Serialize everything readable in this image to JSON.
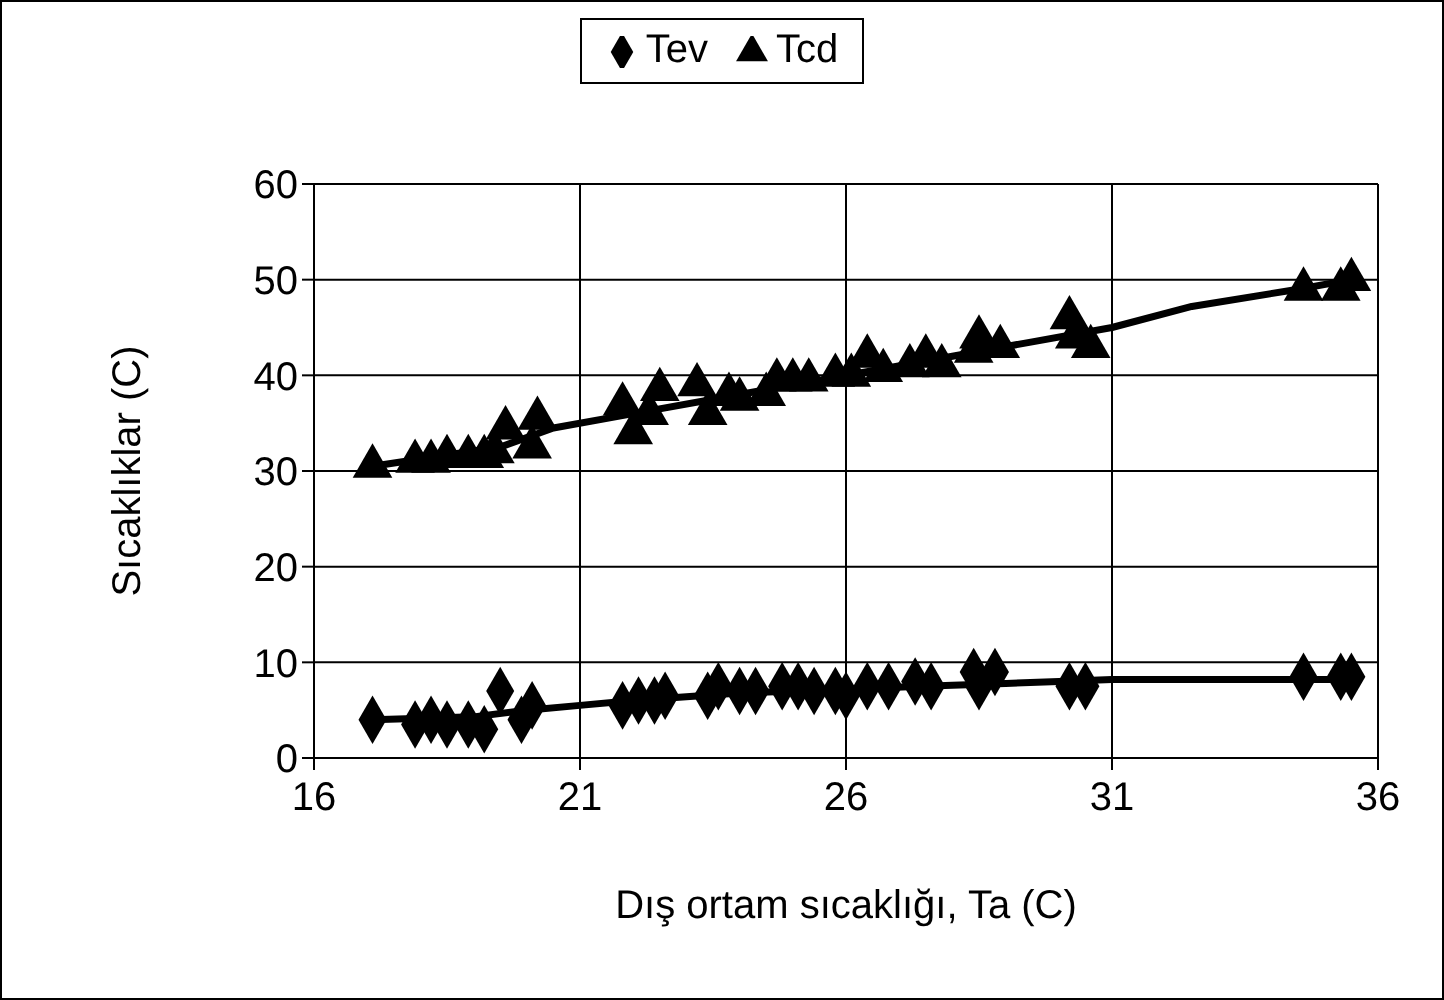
{
  "chart_data": {
    "type": "scatter",
    "xlabel": "Dış ortam sıcaklığı, Ta (C)",
    "ylabel": "Sıcaklıklar (C)",
    "xlim": [
      16,
      36
    ],
    "xticks": [
      16,
      21,
      26,
      31,
      36
    ],
    "ylim": [
      0,
      60
    ],
    "yticks": [
      0,
      10,
      20,
      30,
      40,
      50,
      60
    ],
    "grid": true,
    "legend": "top",
    "series": [
      {
        "name": "Tev",
        "marker": "diamond",
        "color": "#000000",
        "x": [
          17.1,
          17.9,
          18.2,
          18.5,
          18.9,
          19.2,
          19.5,
          19.9,
          20.1,
          21.8,
          22.1,
          22.4,
          22.6,
          23.4,
          23.6,
          24.0,
          24.3,
          24.8,
          25.1,
          25.4,
          25.8,
          26.0,
          26.4,
          26.8,
          27.3,
          27.6,
          28.4,
          28.5,
          28.8,
          30.2,
          30.5,
          34.6,
          35.3,
          35.5
        ],
        "values": [
          4,
          3.5,
          4,
          3.5,
          3.5,
          3,
          7,
          4,
          5.5,
          5.5,
          6,
          6,
          6.5,
          6.5,
          7.5,
          7,
          7,
          7.5,
          7.5,
          7,
          7,
          6.5,
          7.5,
          7.5,
          8,
          7.5,
          9,
          7.5,
          9,
          7.5,
          7.5,
          8.5,
          8.5,
          8.5
        ]
      },
      {
        "name": "Tcd",
        "marker": "triangle",
        "color": "#000000",
        "x": [
          17.1,
          17.9,
          18.2,
          18.5,
          18.9,
          19.2,
          19.4,
          19.6,
          20.1,
          20.2,
          21.8,
          22.0,
          22.3,
          22.5,
          23.2,
          23.4,
          23.8,
          24.0,
          24.5,
          24.7,
          25.0,
          25.3,
          25.8,
          26.1,
          26.4,
          26.7,
          27.2,
          27.5,
          27.8,
          28.4,
          28.5,
          28.9,
          30.2,
          30.3,
          30.6,
          34.6,
          35.3,
          35.5
        ],
        "values": [
          30.5,
          31,
          31,
          31.5,
          31.5,
          31.5,
          32,
          34.5,
          32.5,
          35.5,
          37,
          34,
          36,
          38.5,
          39,
          36,
          38,
          37.5,
          38,
          39.5,
          39.5,
          39.5,
          40,
          40,
          42,
          40.5,
          41,
          42,
          41,
          42.5,
          44,
          43,
          46,
          44,
          43,
          49,
          49,
          50
        ]
      },
      {
        "type": "line",
        "marker": "none",
        "color": "#000000",
        "x": [
          17.1,
          19,
          20,
          21,
          22,
          24,
          26,
          28,
          29,
          30,
          31,
          35.5
        ],
        "values": [
          4,
          4.3,
          5,
          5.5,
          6,
          6.8,
          7.2,
          7.6,
          7.8,
          8,
          8.2,
          8.2
        ]
      },
      {
        "type": "line",
        "marker": "none",
        "color": "#000000",
        "x": [
          17.1,
          19.5,
          20.5,
          22,
          24,
          26,
          28,
          29.5,
          31,
          32.5,
          34.5,
          35.5
        ],
        "values": [
          30.5,
          32.5,
          34.5,
          36,
          38,
          40,
          42,
          43.5,
          45,
          47.2,
          49,
          50
        ]
      }
    ]
  }
}
